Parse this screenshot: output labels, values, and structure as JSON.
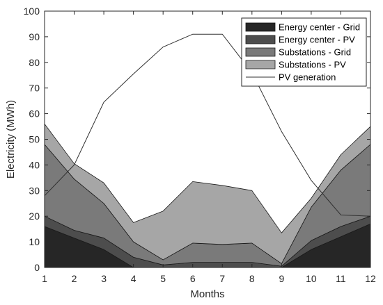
{
  "chart_data": {
    "type": "area",
    "title": "",
    "xlabel": "Months",
    "ylabel": "Electricity (MWh)",
    "xlim": [
      1,
      12
    ],
    "ylim": [
      0,
      100
    ],
    "xticks": [
      1,
      2,
      3,
      4,
      5,
      6,
      7,
      8,
      9,
      10,
      11,
      12
    ],
    "yticks": [
      0,
      10,
      20,
      30,
      40,
      50,
      60,
      70,
      80,
      90,
      100
    ],
    "grid": false,
    "legend_position": "top-right",
    "x": [
      1,
      2,
      3,
      4,
      5,
      6,
      7,
      8,
      9,
      10,
      11,
      12
    ],
    "stacked_series": [
      {
        "name": "Energy center - Grid",
        "color": "#262626",
        "values": [
          16,
          11.5,
          7,
          0,
          0,
          0,
          0,
          0,
          0,
          7,
          12,
          17
        ]
      },
      {
        "name": "Energy center - PV",
        "color": "#4d4d4d",
        "values": [
          4,
          3,
          4.5,
          4,
          1,
          2,
          2,
          2,
          0.5,
          3.5,
          4,
          3
        ]
      },
      {
        "name": "Substations - Grid",
        "color": "#7a7a7a",
        "values": [
          28,
          20,
          13.5,
          6,
          2,
          7.5,
          7,
          7.5,
          1,
          13,
          22,
          28
        ]
      },
      {
        "name": "Substations - PV",
        "color": "#a6a6a6",
        "values": [
          8,
          6,
          8,
          7.5,
          19,
          24,
          23,
          20.5,
          12,
          3.5,
          6,
          7
        ]
      }
    ],
    "line_series": [
      {
        "name": "PV generation",
        "color": "#303030",
        "values": [
          28,
          40,
          64.5,
          75.5,
          86,
          91,
          91,
          76,
          53,
          34,
          20.5,
          20
        ]
      }
    ]
  }
}
